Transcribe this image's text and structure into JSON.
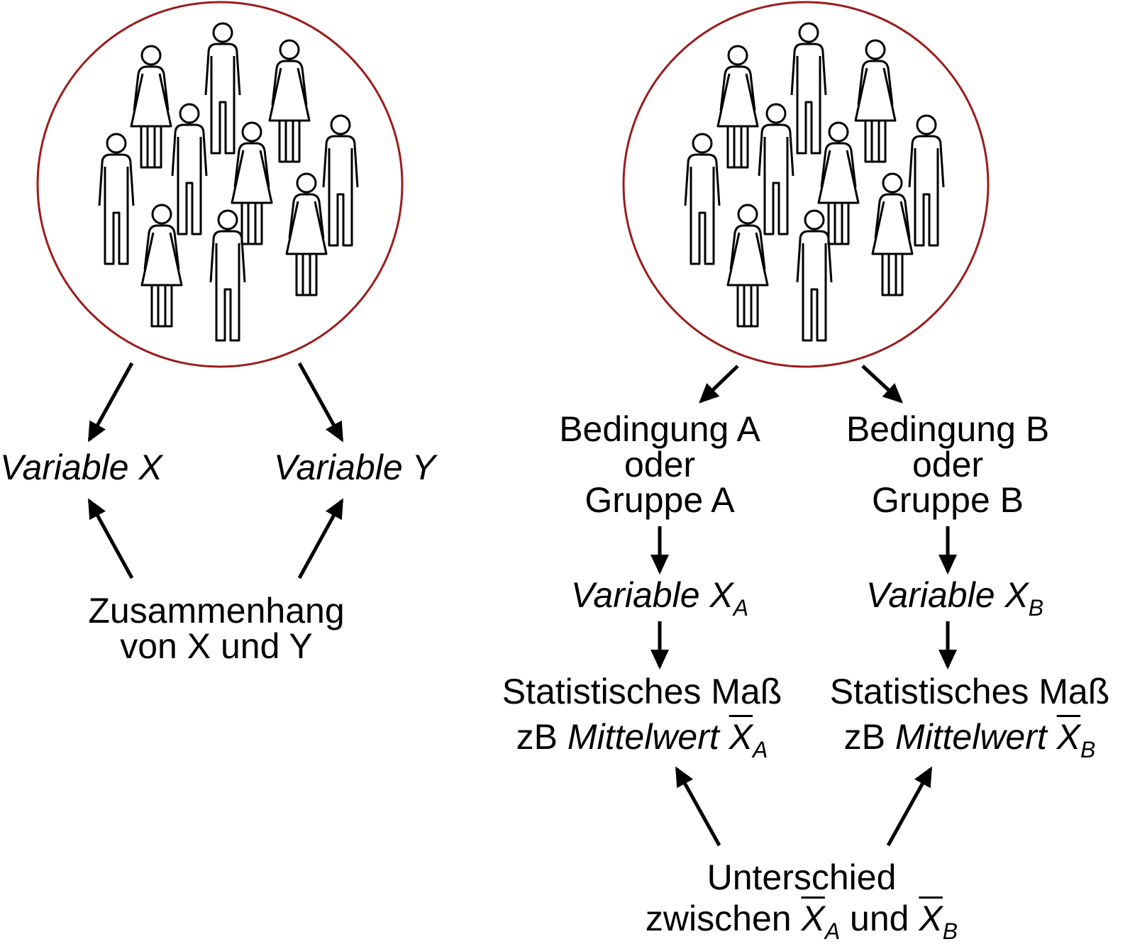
{
  "colors": {
    "circle": "#9b1c1c",
    "ink": "#000000",
    "background": "#ffffff"
  },
  "icons": [
    "person-man-icon",
    "person-woman-icon"
  ],
  "left": {
    "variable_x": "Variable X",
    "variable_y": "Variable Y",
    "relation_line1": "Zusammenhang",
    "relation_line2": "von X und Y"
  },
  "right": {
    "group_a": {
      "line1": "Bedingung A",
      "line2": "oder",
      "line3": "Gruppe A"
    },
    "group_b": {
      "line1": "Bedingung B",
      "line2": "oder",
      "line3": "Gruppe B"
    },
    "variable_prefix": "Variable X",
    "sub_a": "A",
    "sub_b": "B",
    "measure_line1": "Statistisches Maß",
    "measure_prefix": "zB ",
    "measure_word": "Mittelwert ",
    "measure_symbol": "X",
    "difference_line1": "Unterschied",
    "difference_prefix": "zwischen ",
    "difference_and": " und ",
    "difference_symbol": "X"
  }
}
